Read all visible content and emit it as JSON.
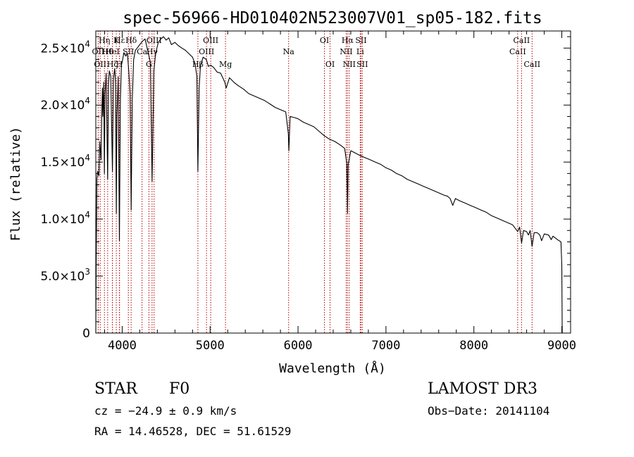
{
  "chart_data": {
    "type": "line",
    "title": "spec-56966-HD010402N523007V01_sp05-182.fits",
    "xlabel": "Wavelength (Å)",
    "ylabel": "Flux (relative)",
    "xlim": [
      3700,
      9100
    ],
    "ylim": [
      0,
      26500
    ],
    "x_ticks": [
      4000,
      5000,
      6000,
      7000,
      8000,
      9000
    ],
    "x_tick_labels": [
      "4000",
      "5000",
      "6000",
      "7000",
      "8000",
      "9000"
    ],
    "y_ticks": [
      {
        "value": 0,
        "mantissa": "0",
        "exp": ""
      },
      {
        "value": 5000,
        "mantissa": "5.0×10",
        "exp": "3"
      },
      {
        "value": 10000,
        "mantissa": "1.0×10",
        "exp": "4"
      },
      {
        "value": 15000,
        "mantissa": "1.5×10",
        "exp": "4"
      },
      {
        "value": 20000,
        "mantissa": "2.0×10",
        "exp": "4"
      },
      {
        "value": 25000,
        "mantissa": "2.5×10",
        "exp": "4"
      }
    ],
    "line_color": "#000000",
    "marker_color": "#b00000",
    "series": [
      {
        "name": "flux",
        "points": [
          [
            3700,
            0
          ],
          [
            3705,
            6300
          ],
          [
            3712,
            13500
          ],
          [
            3720,
            14200
          ],
          [
            3735,
            13800
          ],
          [
            3745,
            16800
          ],
          [
            3760,
            15200
          ],
          [
            3770,
            19800
          ],
          [
            3775,
            21500
          ],
          [
            3780,
            19000
          ],
          [
            3790,
            22000
          ],
          [
            3798,
            14000
          ],
          [
            3805,
            21000
          ],
          [
            3818,
            22800
          ],
          [
            3835,
            13500
          ],
          [
            3845,
            22000
          ],
          [
            3855,
            23000
          ],
          [
            3870,
            22500
          ],
          [
            3889,
            14200
          ],
          [
            3900,
            22300
          ],
          [
            3915,
            23200
          ],
          [
            3925,
            22000
          ],
          [
            3933,
            10500
          ],
          [
            3940,
            19000
          ],
          [
            3955,
            22500
          ],
          [
            3968,
            8100
          ],
          [
            3980,
            20500
          ],
          [
            3992,
            23500
          ],
          [
            4005,
            24000
          ],
          [
            4020,
            24600
          ],
          [
            4040,
            24300
          ],
          [
            4060,
            24500
          ],
          [
            4075,
            23000
          ],
          [
            4090,
            21000
          ],
          [
            4102,
            10800
          ],
          [
            4115,
            20500
          ],
          [
            4130,
            24000
          ],
          [
            4150,
            24800
          ],
          [
            4170,
            25000
          ],
          [
            4200,
            25300
          ],
          [
            4230,
            25600
          ],
          [
            4260,
            25800
          ],
          [
            4290,
            24800
          ],
          [
            4320,
            23800
          ],
          [
            4340,
            13300
          ],
          [
            4360,
            23000
          ],
          [
            4380,
            24500
          ],
          [
            4410,
            25500
          ],
          [
            4440,
            25800
          ],
          [
            4470,
            26000
          ],
          [
            4500,
            25700
          ],
          [
            4530,
            25900
          ],
          [
            4560,
            25300
          ],
          [
            4600,
            25500
          ],
          [
            4640,
            25200
          ],
          [
            4680,
            25000
          ],
          [
            4720,
            24800
          ],
          [
            4760,
            24500
          ],
          [
            4800,
            24200
          ],
          [
            4830,
            23600
          ],
          [
            4850,
            22500
          ],
          [
            4861,
            14200
          ],
          [
            4875,
            21500
          ],
          [
            4890,
            23400
          ],
          [
            4920,
            24200
          ],
          [
            4957,
            24000
          ],
          [
            4980,
            23400
          ],
          [
            5007,
            23500
          ],
          [
            5040,
            23300
          ],
          [
            5080,
            22900
          ],
          [
            5120,
            22800
          ],
          [
            5167,
            22000
          ],
          [
            5183,
            21500
          ],
          [
            5220,
            22400
          ],
          [
            5270,
            22000
          ],
          [
            5320,
            21700
          ],
          [
            5380,
            21400
          ],
          [
            5440,
            21000
          ],
          [
            5500,
            20800
          ],
          [
            5560,
            20600
          ],
          [
            5620,
            20400
          ],
          [
            5680,
            20100
          ],
          [
            5740,
            19800
          ],
          [
            5800,
            19600
          ],
          [
            5860,
            19400
          ],
          [
            5890,
            17500
          ],
          [
            5896,
            16000
          ],
          [
            5910,
            19000
          ],
          [
            5960,
            18900
          ],
          [
            6000,
            18800
          ],
          [
            6060,
            18500
          ],
          [
            6120,
            18300
          ],
          [
            6180,
            18100
          ],
          [
            6240,
            17700
          ],
          [
            6300,
            17300
          ],
          [
            6360,
            17000
          ],
          [
            6420,
            16800
          ],
          [
            6480,
            16500
          ],
          [
            6530,
            16200
          ],
          [
            6555,
            14900
          ],
          [
            6563,
            10500
          ],
          [
            6571,
            14800
          ],
          [
            6600,
            16000
          ],
          [
            6650,
            15800
          ],
          [
            6700,
            15600
          ],
          [
            6760,
            15400
          ],
          [
            6820,
            15200
          ],
          [
            6880,
            15000
          ],
          [
            6940,
            14800
          ],
          [
            7000,
            14500
          ],
          [
            7060,
            14300
          ],
          [
            7120,
            14000
          ],
          [
            7180,
            13800
          ],
          [
            7240,
            13500
          ],
          [
            7300,
            13300
          ],
          [
            7360,
            13100
          ],
          [
            7420,
            12900
          ],
          [
            7480,
            12700
          ],
          [
            7540,
            12500
          ],
          [
            7600,
            12300
          ],
          [
            7660,
            12100
          ],
          [
            7700,
            12000
          ],
          [
            7730,
            11800
          ],
          [
            7760,
            11200
          ],
          [
            7790,
            11800
          ],
          [
            7840,
            11600
          ],
          [
            7900,
            11400
          ],
          [
            7960,
            11200
          ],
          [
            8020,
            11000
          ],
          [
            8080,
            10800
          ],
          [
            8140,
            10600
          ],
          [
            8200,
            10300
          ],
          [
            8260,
            10100
          ],
          [
            8320,
            9900
          ],
          [
            8380,
            9700
          ],
          [
            8440,
            9500
          ],
          [
            8498,
            8900
          ],
          [
            8520,
            9300
          ],
          [
            8542,
            7900
          ],
          [
            8565,
            9000
          ],
          [
            8600,
            8900
          ],
          [
            8620,
            8600
          ],
          [
            8640,
            9000
          ],
          [
            8662,
            7600
          ],
          [
            8685,
            8800
          ],
          [
            8720,
            8800
          ],
          [
            8750,
            8600
          ],
          [
            8770,
            8100
          ],
          [
            8800,
            8700
          ],
          [
            8850,
            8600
          ],
          [
            8880,
            8200
          ],
          [
            8900,
            8500
          ],
          [
            8950,
            8200
          ],
          [
            8990,
            8000
          ],
          [
            9000,
            6000
          ],
          [
            9005,
            0
          ]
        ]
      }
    ],
    "line_markers": [
      {
        "wave": 3727,
        "label": "OII",
        "row": 2
      },
      {
        "wave": 3750,
        "label": "OII",
        "row": 3
      },
      {
        "wave": 3798,
        "label": "Hη",
        "row": 1
      },
      {
        "wave": 3835,
        "label": "Hθ",
        "row": 2
      },
      {
        "wave": 3889,
        "label": "HeI",
        "row": 2
      },
      {
        "wave": 3889,
        "label": "Hζ",
        "row": 3
      },
      {
        "wave": 3933,
        "label": "K",
        "row": 1
      },
      {
        "wave": 3968,
        "label": "H",
        "row": 3
      },
      {
        "wave": 3970,
        "label": "Hε",
        "row": 1
      },
      {
        "wave": 4070,
        "label": "SII",
        "row": 2
      },
      {
        "wave": 4102,
        "label": "Hδ",
        "row": 1
      },
      {
        "wave": 4226,
        "label": "Ca",
        "row": 2
      },
      {
        "wave": 4304,
        "label": "G",
        "row": 3
      },
      {
        "wave": 4340,
        "label": "Hγ",
        "row": 2
      },
      {
        "wave": 4363,
        "label": "OIII",
        "row": 1
      },
      {
        "wave": 4861,
        "label": "Hβ",
        "row": 3
      },
      {
        "wave": 4959,
        "label": "OIII",
        "row": 2
      },
      {
        "wave": 5007,
        "label": "OIII",
        "row": 1
      },
      {
        "wave": 5175,
        "label": "Mg",
        "row": 3
      },
      {
        "wave": 5893,
        "label": "Na",
        "row": 2
      },
      {
        "wave": 6300,
        "label": "OI",
        "row": 1
      },
      {
        "wave": 6364,
        "label": "OI",
        "row": 3
      },
      {
        "wave": 6548,
        "label": "NII",
        "row": 2
      },
      {
        "wave": 6563,
        "label": "Hα",
        "row": 1
      },
      {
        "wave": 6583,
        "label": "NII",
        "row": 3
      },
      {
        "wave": 6707,
        "label": "Li",
        "row": 2
      },
      {
        "wave": 6716,
        "label": "SII",
        "row": 1
      },
      {
        "wave": 6731,
        "label": "SII",
        "row": 3
      },
      {
        "wave": 8498,
        "label": "CaII",
        "row": 2
      },
      {
        "wave": 8542,
        "label": "CaII",
        "row": 1
      },
      {
        "wave": 8662,
        "label": "CaII",
        "row": 3
      }
    ]
  },
  "info": {
    "object_type": "STAR",
    "subclass": "F0",
    "survey": "LAMOST DR3",
    "cz": "cz = −24.9 ± 0.9 km/s",
    "obs_date": "Obs−Date: 20141104",
    "coords": "RA =  14.46528, DEC =  51.61529"
  }
}
